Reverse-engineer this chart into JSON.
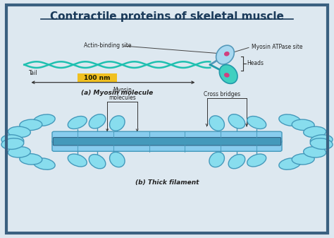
{
  "title": "Contractile proteins of skeletal muscle",
  "bg_color": "#dde8f0",
  "border_color": "#3a6080",
  "panel_a_label": "(a) Myosin molecule",
  "panel_b_label": "(b) Thick filament",
  "scale_label": "100 nm",
  "scale_bg": "#f0c020",
  "labels": {
    "actin_binding": "Actin-binding site",
    "myosin_atpase": "Myosin ATPase site",
    "heads": "Heads",
    "tail": "Tail",
    "myosin_molecules": "Myosin\nmolecules",
    "cross_bridges": "Cross bridges"
  },
  "colors": {
    "helix_cyan": "#20c0b0",
    "head_blue": "#a8d8f0",
    "head_cyan": "#40d0c0",
    "head_spot": "#d04080",
    "filament_blue": "#88ccee",
    "filament_dark": "#4499bb",
    "cross_bridge": "#88ddee"
  }
}
